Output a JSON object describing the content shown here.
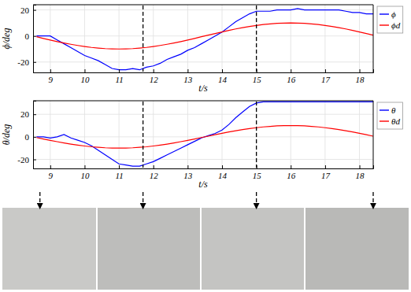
{
  "chart_data": [
    {
      "type": "line",
      "xlabel": "t/s",
      "ylabel": "ϕ/deg",
      "x": [
        8.6,
        8.8,
        9.0,
        9.2,
        9.4,
        9.6,
        9.8,
        10.0,
        10.2,
        10.4,
        10.6,
        10.8,
        11.0,
        11.2,
        11.4,
        11.6,
        11.8,
        12.0,
        12.2,
        12.4,
        12.6,
        12.8,
        13.0,
        13.2,
        13.4,
        13.6,
        13.8,
        14.0,
        14.2,
        14.4,
        14.6,
        14.8,
        15.0,
        15.2,
        15.4,
        15.6,
        15.8,
        16.0,
        16.2,
        16.4,
        16.6,
        16.8,
        17.0,
        17.2,
        17.4,
        17.6,
        17.8,
        18.0,
        18.2,
        18.4
      ],
      "xlim": [
        8.5,
        18.4
      ],
      "xticks": [
        9,
        10,
        11,
        12,
        13,
        14,
        15,
        16,
        17,
        18
      ],
      "ylim": [
        -28,
        24
      ],
      "yticks": [
        -20,
        0,
        20
      ],
      "grid": true,
      "legend": "right",
      "series": [
        {
          "name": "ϕ",
          "color": "#0000ff",
          "values": [
            0,
            0,
            0,
            -3,
            -6,
            -9,
            -12,
            -15,
            -17,
            -19,
            -22,
            -25,
            -26,
            -26,
            -25,
            -26,
            -24,
            -23,
            -21,
            -18,
            -16,
            -14,
            -11,
            -9,
            -6,
            -3,
            0,
            3,
            7,
            11,
            14,
            17,
            19,
            19,
            19,
            20,
            20,
            20,
            21,
            20,
            20,
            20,
            20,
            20,
            20,
            19,
            18,
            18,
            17,
            17
          ]
        },
        {
          "name": "ϕd",
          "color": "#ff0000",
          "values": [
            -0.6,
            -1.9,
            -3.1,
            -4.3,
            -5.4,
            -6.4,
            -7.3,
            -8.1,
            -8.8,
            -9.3,
            -9.7,
            -9.9,
            -10,
            -9.9,
            -9.7,
            -9.3,
            -8.8,
            -8.1,
            -7.3,
            -6.4,
            -5.4,
            -4.3,
            -3.1,
            -1.9,
            -0.6,
            0.6,
            1.9,
            3.1,
            4.3,
            5.4,
            6.4,
            7.3,
            8.1,
            8.8,
            9.3,
            9.7,
            9.9,
            10,
            9.9,
            9.7,
            9.3,
            8.8,
            8.1,
            7.3,
            6.4,
            5.4,
            4.3,
            3.1,
            1.9,
            0.6
          ]
        }
      ]
    },
    {
      "type": "line",
      "xlabel": "t/s",
      "ylabel": "θ/deg",
      "x": [
        8.6,
        8.8,
        9.0,
        9.2,
        9.4,
        9.6,
        9.8,
        10.0,
        10.2,
        10.4,
        10.6,
        10.8,
        11.0,
        11.2,
        11.4,
        11.6,
        11.8,
        12.0,
        12.2,
        12.4,
        12.6,
        12.8,
        13.0,
        13.2,
        13.4,
        13.6,
        13.8,
        14.0,
        14.2,
        14.4,
        14.6,
        14.8,
        15.0,
        15.2,
        15.4,
        15.6,
        15.8,
        16.0,
        16.2,
        16.4,
        16.6,
        16.8,
        17.0,
        17.2,
        17.4,
        17.6,
        17.8,
        18.0,
        18.2,
        18.4
      ],
      "xlim": [
        8.5,
        18.4
      ],
      "xticks": [
        9,
        10,
        11,
        12,
        13,
        14,
        15,
        16,
        17,
        18
      ],
      "ylim": [
        -28,
        32
      ],
      "yticks": [
        -20,
        0,
        20
      ],
      "grid": true,
      "legend": "right",
      "series": [
        {
          "name": "θ",
          "color": "#0000ff",
          "values": [
            0,
            0,
            -1,
            0,
            2,
            -1,
            -3,
            -5,
            -8,
            -12,
            -16,
            -20,
            -24,
            -25,
            -26,
            -26,
            -24,
            -22,
            -19,
            -16,
            -13,
            -10,
            -7,
            -4,
            -1,
            1,
            3,
            6,
            11,
            17,
            22,
            27,
            30,
            31,
            31,
            31,
            31,
            31,
            31,
            31,
            31,
            31,
            31,
            31,
            31,
            31,
            31,
            31,
            31,
            31
          ]
        },
        {
          "name": "θd",
          "color": "#ff0000",
          "values": [
            -0.6,
            -1.9,
            -3.1,
            -4.3,
            -5.4,
            -6.4,
            -7.3,
            -8.1,
            -8.8,
            -9.3,
            -9.7,
            -9.9,
            -10,
            -9.9,
            -9.7,
            -9.3,
            -8.8,
            -8.1,
            -7.3,
            -6.4,
            -5.4,
            -4.3,
            -3.1,
            -1.9,
            -0.6,
            0.6,
            1.9,
            3.1,
            4.3,
            5.4,
            6.4,
            7.3,
            8.1,
            8.8,
            9.3,
            9.7,
            9.9,
            10,
            9.9,
            9.7,
            9.3,
            8.8,
            8.1,
            7.3,
            6.4,
            5.4,
            4.3,
            3.1,
            1.9,
            0.6
          ]
        }
      ]
    }
  ],
  "snapshot_times": [
    8.7,
    11.7,
    15.0,
    18.4
  ]
}
